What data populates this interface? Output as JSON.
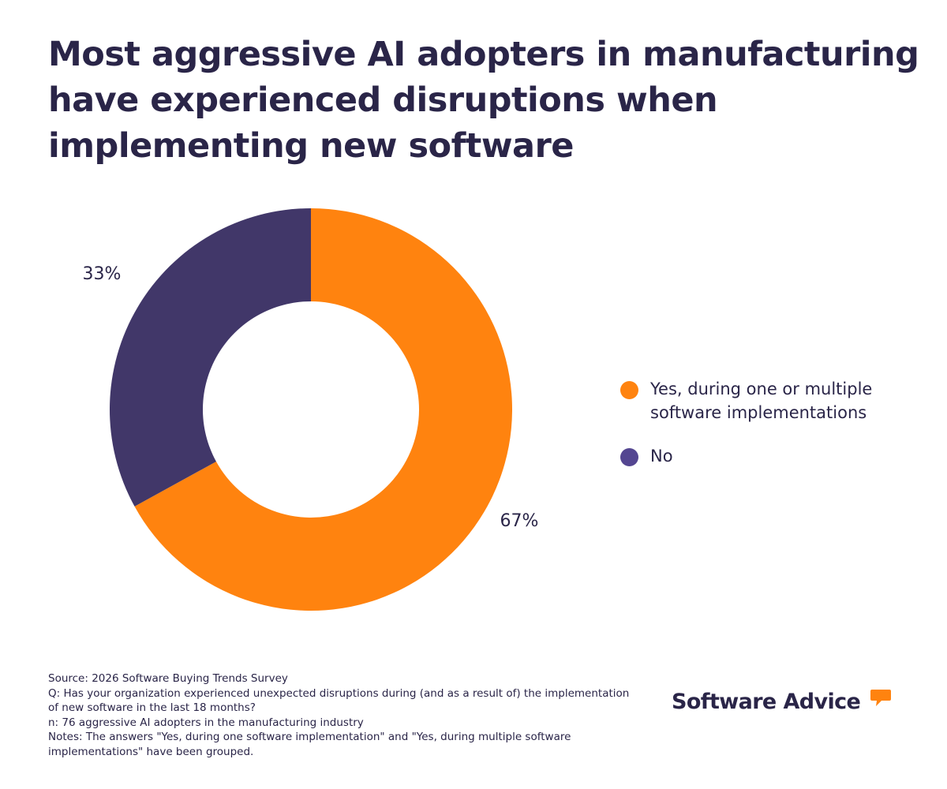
{
  "title_lines": [
    "Most aggressive AI adopters in manufacturing",
    "have experienced disruptions when",
    "implementing new software"
  ],
  "chart_data": {
    "type": "pie",
    "style": "donut",
    "title": "Most aggressive AI adopters in manufacturing have experienced disruptions when implementing new software",
    "categories": [
      "Yes, during one or multiple software implementations",
      "No"
    ],
    "values": [
      67,
      33
    ],
    "value_labels": [
      "67%",
      "33%"
    ],
    "colors": [
      "#ff830f",
      "#413769"
    ],
    "legend_colors": [
      "#ff830f",
      "#544691"
    ],
    "legend_position": "right"
  },
  "legend": {
    "items": [
      {
        "label_lines": [
          "Yes, during one or multiple",
          "software implementations"
        ]
      },
      {
        "label_lines": [
          "No"
        ]
      }
    ]
  },
  "footer": {
    "lines": [
      "Source: 2026 Software Buying Trends Survey",
      "Q: Has your organization experienced unexpected disruptions during (and as a result of) the implementation",
      "of new software in the last 18 months?",
      "n: 76 aggressive AI adopters in the manufacturing industry",
      "Notes: The answers \"Yes, during one software implementation\" and \"Yes, during multiple software",
      "implementations\" have been grouped."
    ]
  },
  "brand": {
    "name": "Software Advice",
    "bubble_color": "#ff830f"
  }
}
